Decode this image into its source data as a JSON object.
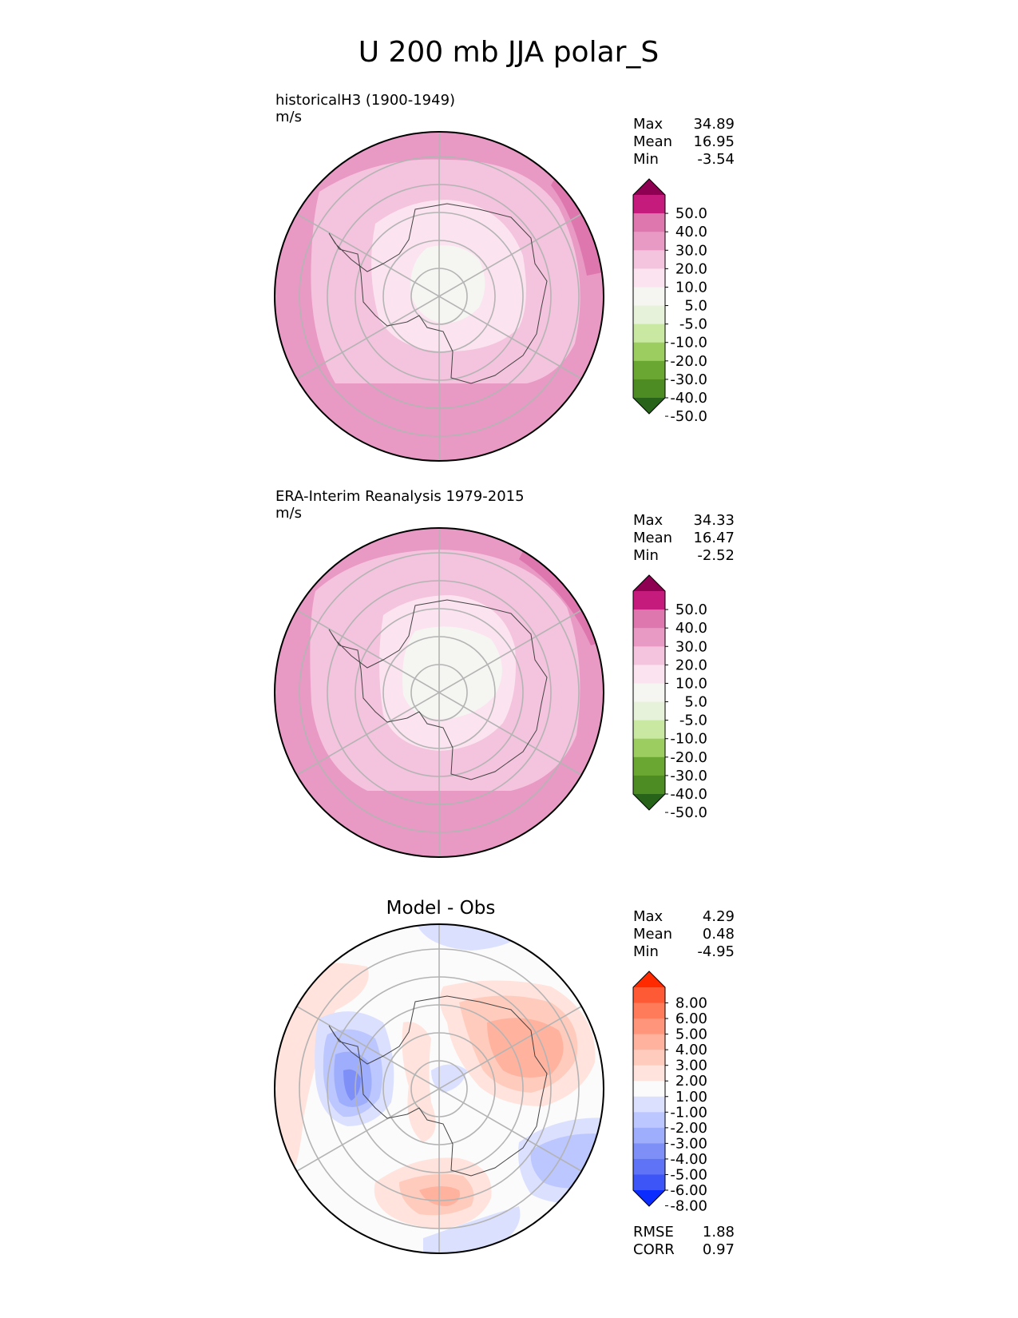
{
  "chart_data": {
    "type": "polar-contour-map",
    "title": "U 200 mb JJA polar_S",
    "panels": [
      {
        "id": "model",
        "title_left": "historicalH3 (1900-1949)",
        "units": "m/s",
        "center_title": "",
        "stats": [
          {
            "label": "Max",
            "value": "34.89"
          },
          {
            "label": "Mean",
            "value": "16.95"
          },
          {
            "label": "Min",
            "value": "-3.54"
          }
        ],
        "colorbar": {
          "labels": [
            "50.0",
            "40.0",
            "30.0",
            "20.0",
            "10.0",
            "5.0",
            "-5.0",
            "-10.0",
            "-20.0",
            "-30.0",
            "-40.0",
            "-50.0"
          ],
          "colors": [
            "#8e0152",
            "#c51b7d",
            "#de77ae",
            "#e899c4",
            "#f4c3dd",
            "#fbe3ef",
            "#f5f5f2",
            "#e6f2d9",
            "#c9e8a1",
            "#9ccd60",
            "#6aa632",
            "#4d8c23",
            "#276419"
          ]
        },
        "fill_layers": [
          {
            "name": "ring-20-30",
            "color": "#e899c4"
          },
          {
            "name": "band-10-20",
            "color": "#f4c3dd"
          },
          {
            "name": "band-5-10",
            "color": "#fbe3ef"
          },
          {
            "name": "core-neutral",
            "color": "#f5f5f2"
          },
          {
            "name": "jet-30-40",
            "color": "#de77ae"
          }
        ]
      },
      {
        "id": "obs",
        "title_left": "ERA-Interim Reanalysis 1979-2015",
        "units": "m/s",
        "center_title": "",
        "stats": [
          {
            "label": "Max",
            "value": "34.33"
          },
          {
            "label": "Mean",
            "value": "16.47"
          },
          {
            "label": "Min",
            "value": "-2.52"
          }
        ],
        "colorbar": {
          "labels": [
            "50.0",
            "40.0",
            "30.0",
            "20.0",
            "10.0",
            "5.0",
            "-5.0",
            "-10.0",
            "-20.0",
            "-30.0",
            "-40.0",
            "-50.0"
          ],
          "colors": [
            "#8e0152",
            "#c51b7d",
            "#de77ae",
            "#e899c4",
            "#f4c3dd",
            "#fbe3ef",
            "#f5f5f2",
            "#e6f2d9",
            "#c9e8a1",
            "#9ccd60",
            "#6aa632",
            "#4d8c23",
            "#276419"
          ]
        },
        "fill_layers": [
          {
            "name": "ring-20-30",
            "color": "#e899c4"
          },
          {
            "name": "band-10-20",
            "color": "#f4c3dd"
          },
          {
            "name": "band-5-10",
            "color": "#fbe3ef"
          },
          {
            "name": "core-neutral",
            "color": "#f5f5f2"
          },
          {
            "name": "jet-30-40",
            "color": "#de77ae"
          }
        ]
      },
      {
        "id": "diff",
        "title_left": "",
        "units": "",
        "center_title": "Model - Obs",
        "stats": [
          {
            "label": "Max",
            "value": "4.29"
          },
          {
            "label": "Mean",
            "value": "0.48"
          },
          {
            "label": "Min",
            "value": "-4.95"
          }
        ],
        "bottom_stats": [
          {
            "label": "RMSE",
            "value": "1.88"
          },
          {
            "label": "CORR",
            "value": "0.97"
          }
        ],
        "colorbar": {
          "labels": [
            "8.00",
            "6.00",
            "5.00",
            "4.00",
            "3.00",
            "2.00",
            "1.00",
            "-1.00",
            "-2.00",
            "-3.00",
            "-4.00",
            "-5.00",
            "-6.00",
            "-8.00"
          ],
          "colors": [
            "#ff2a00",
            "#ff5a36",
            "#ff7b5a",
            "#ff957b",
            "#ffb29e",
            "#ffcbbd",
            "#ffe3dc",
            "#fbfbfb",
            "#dbe0ff",
            "#bcc6ff",
            "#9eaefc",
            "#7e90f8",
            "#5e73f6",
            "#3d55f7",
            "#0a2cff"
          ]
        },
        "fill_layers": [
          {
            "name": "pos-1-2",
            "color": "#ffe3dc"
          },
          {
            "name": "pos-2-3",
            "color": "#ffcbbd"
          },
          {
            "name": "pos-3-4",
            "color": "#ffb29e"
          },
          {
            "name": "neg-1-2",
            "color": "#dbe0ff"
          },
          {
            "name": "neg-2-3",
            "color": "#bcc6ff"
          },
          {
            "name": "neg-3-4",
            "color": "#9eaefc"
          },
          {
            "name": "neg-4-5",
            "color": "#7e90f8"
          }
        ]
      }
    ]
  }
}
